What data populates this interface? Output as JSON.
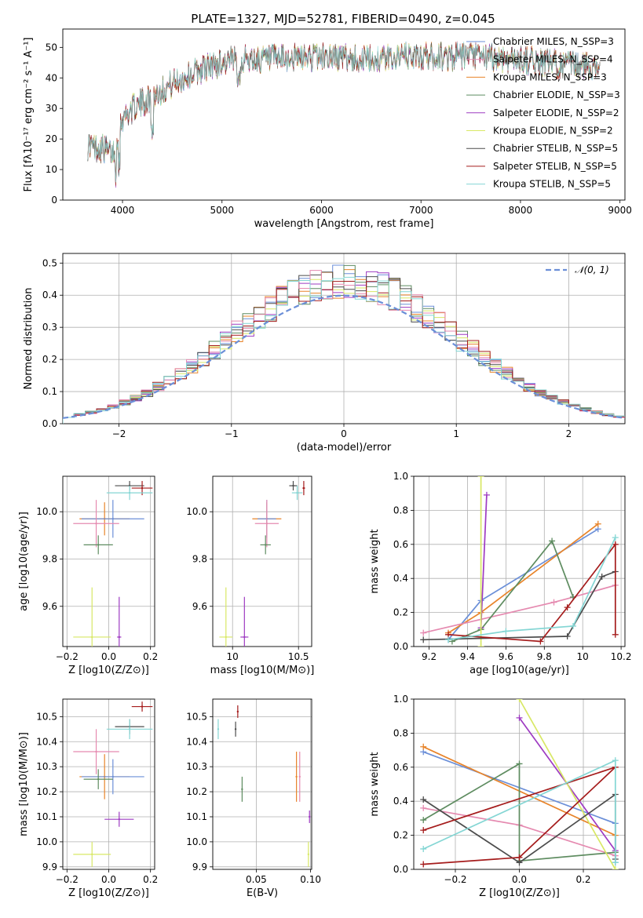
{
  "figure_title": "PLATE=1327, MJD=52781, FIBERID=0490, z=0.045",
  "series_colors": [
    "#6b8fd8",
    "#e8842a",
    "#5e8c60",
    "#9e3bc2",
    "#d8e865",
    "#4c4c4c",
    "#e58ab0",
    "#a51c1c",
    "#84d6d4"
  ],
  "chart_data": [
    {
      "id": "spectrum",
      "type": "line",
      "xlabel": "wavelength [Angstrom, rest frame]",
      "ylabel": "Flux [fλ10⁻¹⁷ erg cm⁻² s⁻¹ A⁻¹]",
      "xlim": [
        3400,
        9050
      ],
      "ylim": [
        0,
        56
      ],
      "xticks": [
        4000,
        5000,
        6000,
        7000,
        8000,
        9000
      ],
      "yticks": [
        0,
        10,
        20,
        30,
        40,
        50
      ],
      "grid": false,
      "legend_position": "top-right",
      "data_range": [
        3650,
        8800
      ],
      "spectrum_envelope": {
        "x": [
          3650,
          3800,
          3900,
          4000,
          4100,
          4300,
          4500,
          4800,
          5000,
          5200,
          5500,
          6000,
          6500,
          6800,
          7000,
          7500,
          8000,
          8500,
          8800
        ],
        "y": [
          18,
          17,
          15,
          27,
          30,
          34,
          38,
          43,
          45,
          46,
          46,
          47,
          46,
          47,
          47,
          47,
          46,
          44,
          44
        ]
      },
      "series": [
        {
          "name": "Chabrier MILES, N_SSP=3",
          "color": "#6b8fd8"
        },
        {
          "name": "Salpeter MILES, N_SSP=4",
          "color": "#e58ab0"
        },
        {
          "name": "Kroupa MILES, N_SSP=3",
          "color": "#e8842a"
        },
        {
          "name": "Chabrier ELODIE, N_SSP=3",
          "color": "#5e8c60"
        },
        {
          "name": "Salpeter ELODIE, N_SSP=2",
          "color": "#9e3bc2"
        },
        {
          "name": "Kroupa ELODIE, N_SSP=2",
          "color": "#d8e865"
        },
        {
          "name": "Chabrier STELIB, N_SSP=5",
          "color": "#4c4c4c"
        },
        {
          "name": "Salpeter STELIB, N_SSP=5",
          "color": "#a51c1c"
        },
        {
          "name": "Kroupa STELIB, N_SSP=5",
          "color": "#84d6d4"
        }
      ]
    },
    {
      "id": "residuals",
      "type": "line",
      "xlabel": "(data-model)/error",
      "ylabel": "Normed distribution",
      "xlim": [
        -2.5,
        2.5
      ],
      "ylim": [
        0,
        0.53
      ],
      "xticks": [
        -2,
        -1,
        0,
        1,
        2
      ],
      "xtick_labels": [
        "−2",
        "−1",
        "0",
        "1",
        "2"
      ],
      "yticks": [
        0.0,
        0.1,
        0.2,
        0.3,
        0.4,
        0.5
      ],
      "grid": true,
      "legend_position": "top-right",
      "legend": "𝒩(0, 1)",
      "bins": 50
    },
    {
      "id": "age_vs_z",
      "type": "scatter",
      "xlabel": "Z [log10(Z/Z⊙)]",
      "ylabel": "age  [log10(age/yr)]",
      "xlim": [
        -0.22,
        0.22
      ],
      "ylim": [
        9.43,
        10.15
      ],
      "xticks": [
        -0.2,
        0.0,
        0.2
      ],
      "xtick_labels": [
        "−0.2",
        "0.0",
        "0.2"
      ],
      "yticks": [
        9.6,
        9.8,
        10.0
      ],
      "grid": true,
      "points": [
        {
          "x": 0.1,
          "y": 10.11,
          "xerr": 0.07,
          "yerr": 0.02,
          "color": "#4c4c4c"
        },
        {
          "x": 0.16,
          "y": 10.1,
          "xerr": 0.05,
          "yerr": 0.03,
          "color": "#a51c1c"
        },
        {
          "x": 0.1,
          "y": 10.08,
          "xerr": 0.11,
          "yerr": 0.03,
          "color": "#84d6d4"
        },
        {
          "x": -0.02,
          "y": 9.97,
          "xerr": 0.12,
          "yerr": 0.07,
          "color": "#e8842a"
        },
        {
          "x": 0.02,
          "y": 9.97,
          "xerr": 0.15,
          "yerr": 0.08,
          "color": "#6b8fd8"
        },
        {
          "x": -0.06,
          "y": 9.95,
          "xerr": 0.11,
          "yerr": 0.1,
          "color": "#e58ab0"
        },
        {
          "x": -0.05,
          "y": 9.86,
          "xerr": 0.07,
          "yerr": 0.04,
          "color": "#5e8c60"
        },
        {
          "x": 0.05,
          "y": 9.47,
          "xerr": 0.01,
          "yerr": 0.17,
          "color": "#9e3bc2"
        },
        {
          "x": -0.08,
          "y": 9.47,
          "xerr": 0.09,
          "yerr": 0.21,
          "color": "#d8e865"
        }
      ]
    },
    {
      "id": "age_vs_mass",
      "type": "scatter",
      "xlabel": "mass [log10(M/M⊙)]",
      "ylabel": "",
      "xlim": [
        9.85,
        10.6
      ],
      "ylim": [
        9.43,
        10.15
      ],
      "xticks": [
        10.0,
        10.5
      ],
      "xtick_labels": [
        "10",
        "10.5"
      ],
      "yticks": [
        9.6,
        9.8,
        10.0
      ],
      "grid": true,
      "points": [
        {
          "x": 10.54,
          "y": 10.1,
          "xerr": 0.01,
          "yerr": 0.03,
          "color": "#a51c1c"
        },
        {
          "x": 10.46,
          "y": 10.11,
          "xerr": 0.03,
          "yerr": 0.02,
          "color": "#4c4c4c"
        },
        {
          "x": 10.49,
          "y": 10.08,
          "xerr": 0.04,
          "yerr": 0.03,
          "color": "#84d6d4"
        },
        {
          "x": 10.26,
          "y": 9.97,
          "xerr": 0.11,
          "yerr": 0.07,
          "color": "#e8842a"
        },
        {
          "x": 10.26,
          "y": 9.97,
          "xerr": 0.07,
          "yerr": 0.08,
          "color": "#6b8fd8"
        },
        {
          "x": 10.26,
          "y": 9.95,
          "xerr": 0.09,
          "yerr": 0.1,
          "color": "#e58ab0"
        },
        {
          "x": 10.25,
          "y": 9.86,
          "xerr": 0.04,
          "yerr": 0.04,
          "color": "#5e8c60"
        },
        {
          "x": 10.09,
          "y": 9.47,
          "xerr": 0.03,
          "yerr": 0.17,
          "color": "#9e3bc2"
        },
        {
          "x": 9.95,
          "y": 9.47,
          "xerr": 0.05,
          "yerr": 0.21,
          "color": "#d8e865"
        }
      ]
    },
    {
      "id": "weight_vs_age",
      "type": "line",
      "xlabel": "age  [log10(age/yr)]",
      "ylabel": "mass weight",
      "xlim": [
        9.12,
        10.22
      ],
      "ylim": [
        0,
        1
      ],
      "xticks": [
        9.2,
        9.4,
        9.6,
        9.8,
        10.0,
        10.2
      ],
      "yticks": [
        0.0,
        0.2,
        0.4,
        0.6,
        0.8,
        1.0
      ],
      "grid": true,
      "series": [
        {
          "color": "#6b8fd8",
          "x": [
            9.3,
            9.47,
            10.08
          ],
          "y": [
            0.04,
            0.27,
            0.69
          ]
        },
        {
          "color": "#e8842a",
          "x": [
            9.3,
            9.47,
            10.08
          ],
          "y": [
            0.08,
            0.2,
            0.72
          ]
        },
        {
          "color": "#e58ab0",
          "x": [
            9.17,
            9.85,
            9.95,
            10.17
          ],
          "y": [
            0.08,
            0.26,
            0.29,
            0.36
          ]
        },
        {
          "color": "#5e8c60",
          "x": [
            9.32,
            9.47,
            9.84,
            9.95
          ],
          "y": [
            0.03,
            0.1,
            0.62,
            0.29
          ]
        },
        {
          "color": "#9e3bc2",
          "x": [
            9.47,
            9.5
          ],
          "y": [
            0.11,
            0.89
          ]
        },
        {
          "color": "#d8e865",
          "x": [
            9.47,
            9.47
          ],
          "y": [
            0.0,
            1.0
          ]
        },
        {
          "color": "#4c4c4c",
          "x": [
            9.17,
            9.92,
            10.1,
            10.17
          ],
          "y": [
            0.04,
            0.06,
            0.41,
            0.44
          ]
        },
        {
          "color": "#a51c1c",
          "x": [
            9.3,
            9.78,
            9.92,
            10.17,
            10.17
          ],
          "y": [
            0.07,
            0.03,
            0.23,
            0.6,
            0.07
          ]
        },
        {
          "color": "#84d6d4",
          "x": [
            9.3,
            9.6,
            9.95,
            10.17
          ],
          "y": [
            0.04,
            0.09,
            0.12,
            0.64
          ]
        }
      ]
    },
    {
      "id": "mass_vs_z",
      "type": "scatter",
      "xlabel": "Z [log10(Z/Z⊙)]",
      "ylabel": "mass [log10(M/M⊙)]",
      "xlim": [
        -0.22,
        0.22
      ],
      "ylim": [
        9.89,
        10.57
      ],
      "xticks": [
        -0.2,
        0.0,
        0.2
      ],
      "xtick_labels": [
        "−0.2",
        "0.0",
        "0.2"
      ],
      "yticks": [
        9.9,
        10.0,
        10.1,
        10.2,
        10.3,
        10.4,
        10.5
      ],
      "grid": true,
      "points": [
        {
          "x": 0.16,
          "y": 10.54,
          "xerr": 0.05,
          "yerr": 0.02,
          "color": "#a51c1c"
        },
        {
          "x": 0.1,
          "y": 10.46,
          "xerr": 0.07,
          "yerr": 0.03,
          "color": "#4c4c4c"
        },
        {
          "x": 0.1,
          "y": 10.45,
          "xerr": 0.11,
          "yerr": 0.04,
          "color": "#84d6d4"
        },
        {
          "x": -0.06,
          "y": 10.36,
          "xerr": 0.11,
          "yerr": 0.09,
          "color": "#e58ab0"
        },
        {
          "x": -0.02,
          "y": 10.26,
          "xerr": 0.12,
          "yerr": 0.09,
          "color": "#e8842a"
        },
        {
          "x": 0.02,
          "y": 10.26,
          "xerr": 0.15,
          "yerr": 0.07,
          "color": "#6b8fd8"
        },
        {
          "x": -0.05,
          "y": 10.25,
          "xerr": 0.07,
          "yerr": 0.04,
          "color": "#5e8c60"
        },
        {
          "x": 0.05,
          "y": 10.09,
          "xerr": 0.07,
          "yerr": 0.03,
          "color": "#9e3bc2"
        },
        {
          "x": -0.08,
          "y": 9.95,
          "xerr": 0.09,
          "yerr": 0.05,
          "color": "#d8e865"
        }
      ]
    },
    {
      "id": "mass_vs_ebv",
      "type": "scatter",
      "xlabel": "E(B-V)",
      "ylabel": "",
      "xlim": [
        0.01,
        0.101
      ],
      "ylim": [
        9.89,
        10.57
      ],
      "xticks": [
        0.05,
        0.1
      ],
      "xtick_labels": [
        "0.05",
        "0.10"
      ],
      "yticks": [
        9.9,
        10.0,
        10.1,
        10.2,
        10.3,
        10.4,
        10.5
      ],
      "grid": true,
      "points": [
        {
          "x": 0.033,
          "y": 10.52,
          "yerr": 0.025,
          "color": "#a51c1c"
        },
        {
          "x": 0.031,
          "y": 10.45,
          "yerr": 0.03,
          "color": "#4c4c4c"
        },
        {
          "x": 0.015,
          "y": 10.45,
          "yerr": 0.04,
          "color": "#84d6d4"
        },
        {
          "x": 0.037,
          "y": 10.21,
          "yerr": 0.05,
          "color": "#5e8c60"
        },
        {
          "x": 0.087,
          "y": 10.26,
          "yerr": 0.1,
          "color": "#e8842a"
        },
        {
          "x": 0.09,
          "y": 10.26,
          "yerr": 0.1,
          "color": "#e58ab0"
        },
        {
          "x": 0.099,
          "y": 10.1,
          "yerr": 0.025,
          "color": "#9e3bc2"
        },
        {
          "x": 0.098,
          "y": 9.95,
          "yerr": 0.05,
          "color": "#d8e865"
        }
      ]
    },
    {
      "id": "weight_vs_z",
      "type": "line",
      "xlabel": "Z [log10(Z/Z⊙)]",
      "ylabel": "mass weight",
      "xlim": [
        -0.33,
        0.33
      ],
      "ylim": [
        0,
        1
      ],
      "xticks": [
        -0.2,
        0.0,
        0.2
      ],
      "xtick_labels": [
        "−0.2",
        "0.0",
        "0.2"
      ],
      "yticks": [
        0.0,
        0.2,
        0.4,
        0.6,
        0.8,
        1.0
      ],
      "grid": true,
      "series": [
        {
          "color": "#6b8fd8",
          "x": [
            -0.3,
            0.3,
            0.3
          ],
          "y": [
            0.69,
            0.27,
            0.04
          ]
        },
        {
          "color": "#e8842a",
          "x": [
            -0.3,
            0.3
          ],
          "y": [
            0.72,
            0.2
          ]
        },
        {
          "color": "#e58ab0",
          "x": [
            -0.3,
            0.0,
            0.3
          ],
          "y": [
            0.36,
            0.26,
            0.08
          ]
        },
        {
          "color": "#5e8c60",
          "x": [
            -0.3,
            0.0,
            0.0,
            0.3
          ],
          "y": [
            0.29,
            0.62,
            0.05,
            0.1
          ]
        },
        {
          "color": "#9e3bc2",
          "x": [
            0.0,
            0.3
          ],
          "y": [
            0.89,
            0.11
          ]
        },
        {
          "color": "#d8e865",
          "x": [
            0.0,
            0.3
          ],
          "y": [
            1.0,
            0.0
          ]
        },
        {
          "color": "#4c4c4c",
          "x": [
            -0.3,
            0.0,
            0.3,
            0.3
          ],
          "y": [
            0.41,
            0.04,
            0.44,
            0.06
          ]
        },
        {
          "color": "#a51c1c",
          "x": [
            -0.3,
            0.0,
            0.3,
            -0.3
          ],
          "y": [
            0.03,
            0.07,
            0.6,
            0.23
          ]
        },
        {
          "color": "#84d6d4",
          "x": [
            -0.3,
            0.3,
            0.3
          ],
          "y": [
            0.12,
            0.64,
            0.04
          ]
        }
      ]
    }
  ]
}
